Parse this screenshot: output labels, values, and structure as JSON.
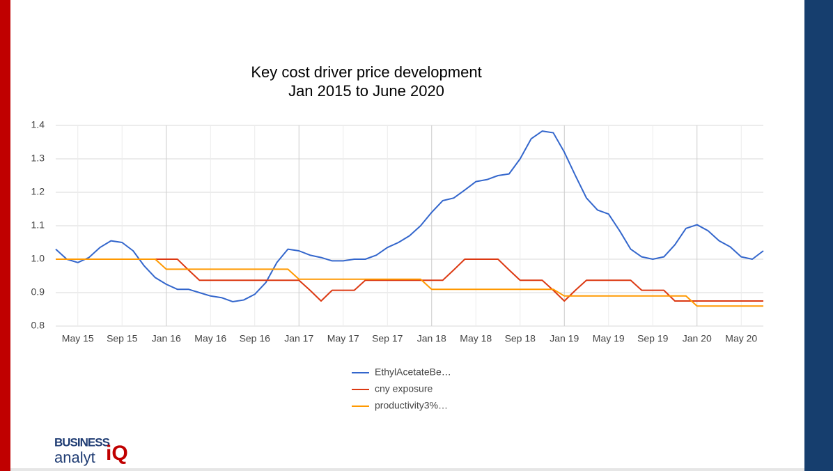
{
  "chart_data": {
    "type": "line",
    "title": "Key cost driver price development",
    "subtitle": "Jan 2015 to June 2020",
    "x": [
      "2015-03",
      "2015-04",
      "2015-05",
      "2015-06",
      "2015-07",
      "2015-08",
      "2015-09",
      "2015-10",
      "2015-11",
      "2015-12",
      "2016-01",
      "2016-02",
      "2016-03",
      "2016-04",
      "2016-05",
      "2016-06",
      "2016-07",
      "2016-08",
      "2016-09",
      "2016-10",
      "2016-11",
      "2016-12",
      "2017-01",
      "2017-02",
      "2017-03",
      "2017-04",
      "2017-05",
      "2017-06",
      "2017-07",
      "2017-08",
      "2017-09",
      "2017-10",
      "2017-11",
      "2017-12",
      "2018-01",
      "2018-02",
      "2018-03",
      "2018-04",
      "2018-05",
      "2018-06",
      "2018-07",
      "2018-08",
      "2018-09",
      "2018-10",
      "2018-11",
      "2018-12",
      "2019-01",
      "2019-02",
      "2019-03",
      "2019-04",
      "2019-05",
      "2019-06",
      "2019-07",
      "2019-08",
      "2019-09",
      "2019-10",
      "2019-11",
      "2019-12",
      "2020-01",
      "2020-02",
      "2020-03",
      "2020-04",
      "2020-05",
      "2020-06",
      "2020-07"
    ],
    "series": [
      {
        "name": "EthylAcetateBe…",
        "color": "#3366cc",
        "values": [
          1.03,
          1.0,
          0.99,
          1.005,
          1.035,
          1.055,
          1.05,
          1.025,
          0.98,
          0.945,
          0.925,
          0.91,
          0.91,
          0.9,
          0.89,
          0.885,
          0.873,
          0.878,
          0.895,
          0.93,
          0.99,
          1.03,
          1.025,
          1.012,
          1.005,
          0.995,
          0.995,
          1.0,
          1.0,
          1.012,
          1.035,
          1.05,
          1.07,
          1.1,
          1.14,
          1.175,
          1.183,
          1.207,
          1.232,
          1.238,
          1.25,
          1.255,
          1.3,
          1.36,
          1.383,
          1.378,
          1.32,
          1.25,
          1.183,
          1.147,
          1.135,
          1.085,
          1.03,
          1.007,
          1.0,
          1.007,
          1.043,
          1.092,
          1.103,
          1.085,
          1.055,
          1.037,
          1.007,
          1.0,
          1.025
        ]
      },
      {
        "name": "cny exposure",
        "color": "#dc3912",
        "values": [
          1.0,
          1.0,
          1.0,
          1.0,
          1.0,
          1.0,
          1.0,
          1.0,
          1.0,
          1.0,
          1.0,
          1.0,
          0.968,
          0.937,
          0.937,
          0.937,
          0.937,
          0.937,
          0.937,
          0.937,
          0.937,
          0.937,
          0.937,
          0.907,
          0.875,
          0.907,
          0.907,
          0.907,
          0.937,
          0.937,
          0.937,
          0.937,
          0.937,
          0.937,
          0.937,
          0.937,
          0.968,
          1.0,
          1.0,
          1.0,
          1.0,
          0.968,
          0.937,
          0.937,
          0.937,
          0.907,
          0.875,
          0.907,
          0.937,
          0.937,
          0.937,
          0.937,
          0.937,
          0.907,
          0.907,
          0.907,
          0.875,
          0.875,
          0.875,
          0.875,
          0.875,
          0.875,
          0.875,
          0.875,
          0.875
        ]
      },
      {
        "name": "productivity3%…",
        "color": "#ff9900",
        "values": [
          1.0,
          1.0,
          1.0,
          1.0,
          1.0,
          1.0,
          1.0,
          1.0,
          1.0,
          1.0,
          0.97,
          0.97,
          0.97,
          0.97,
          0.97,
          0.97,
          0.97,
          0.97,
          0.97,
          0.97,
          0.97,
          0.97,
          0.94,
          0.94,
          0.94,
          0.94,
          0.94,
          0.94,
          0.94,
          0.94,
          0.94,
          0.94,
          0.94,
          0.94,
          0.91,
          0.91,
          0.91,
          0.91,
          0.91,
          0.91,
          0.91,
          0.91,
          0.91,
          0.91,
          0.91,
          0.91,
          0.89,
          0.89,
          0.89,
          0.89,
          0.89,
          0.89,
          0.89,
          0.89,
          0.89,
          0.89,
          0.89,
          0.89,
          0.86,
          0.86,
          0.86,
          0.86,
          0.86,
          0.86,
          0.86
        ]
      }
    ],
    "xlim": [
      "2015-03",
      "2020-07"
    ],
    "xticks": [
      {
        "value": "2015-05",
        "label": "May 15"
      },
      {
        "value": "2015-09",
        "label": "Sep 15"
      },
      {
        "value": "2016-01",
        "label": "Jan 16"
      },
      {
        "value": "2016-05",
        "label": "May 16"
      },
      {
        "value": "2016-09",
        "label": "Sep 16"
      },
      {
        "value": "2017-01",
        "label": "Jan 17"
      },
      {
        "value": "2017-05",
        "label": "May 17"
      },
      {
        "value": "2017-09",
        "label": "Sep 17"
      },
      {
        "value": "2018-01",
        "label": "Jan 18"
      },
      {
        "value": "2018-05",
        "label": "May 18"
      },
      {
        "value": "2018-09",
        "label": "Sep 18"
      },
      {
        "value": "2019-01",
        "label": "Jan 19"
      },
      {
        "value": "2019-05",
        "label": "May 19"
      },
      {
        "value": "2019-09",
        "label": "Sep 19"
      },
      {
        "value": "2020-01",
        "label": "Jan 20"
      },
      {
        "value": "2020-05",
        "label": "May 20"
      }
    ],
    "ylim": [
      0.8,
      1.4
    ],
    "yticks": [
      {
        "value": 0.8,
        "label": "0.8"
      },
      {
        "value": 0.9,
        "label": "0.9"
      },
      {
        "value": 1.0,
        "label": "1.0"
      },
      {
        "value": 1.1,
        "label": "1.1"
      },
      {
        "value": 1.2,
        "label": "1.2"
      },
      {
        "value": 1.3,
        "label": "1.3"
      },
      {
        "value": 1.4,
        "label": "1.4"
      }
    ],
    "grid": true,
    "legend": "bottom"
  },
  "logo": {
    "top": "BUSINESS",
    "bottom": "analyt",
    "mark": "iQ"
  }
}
